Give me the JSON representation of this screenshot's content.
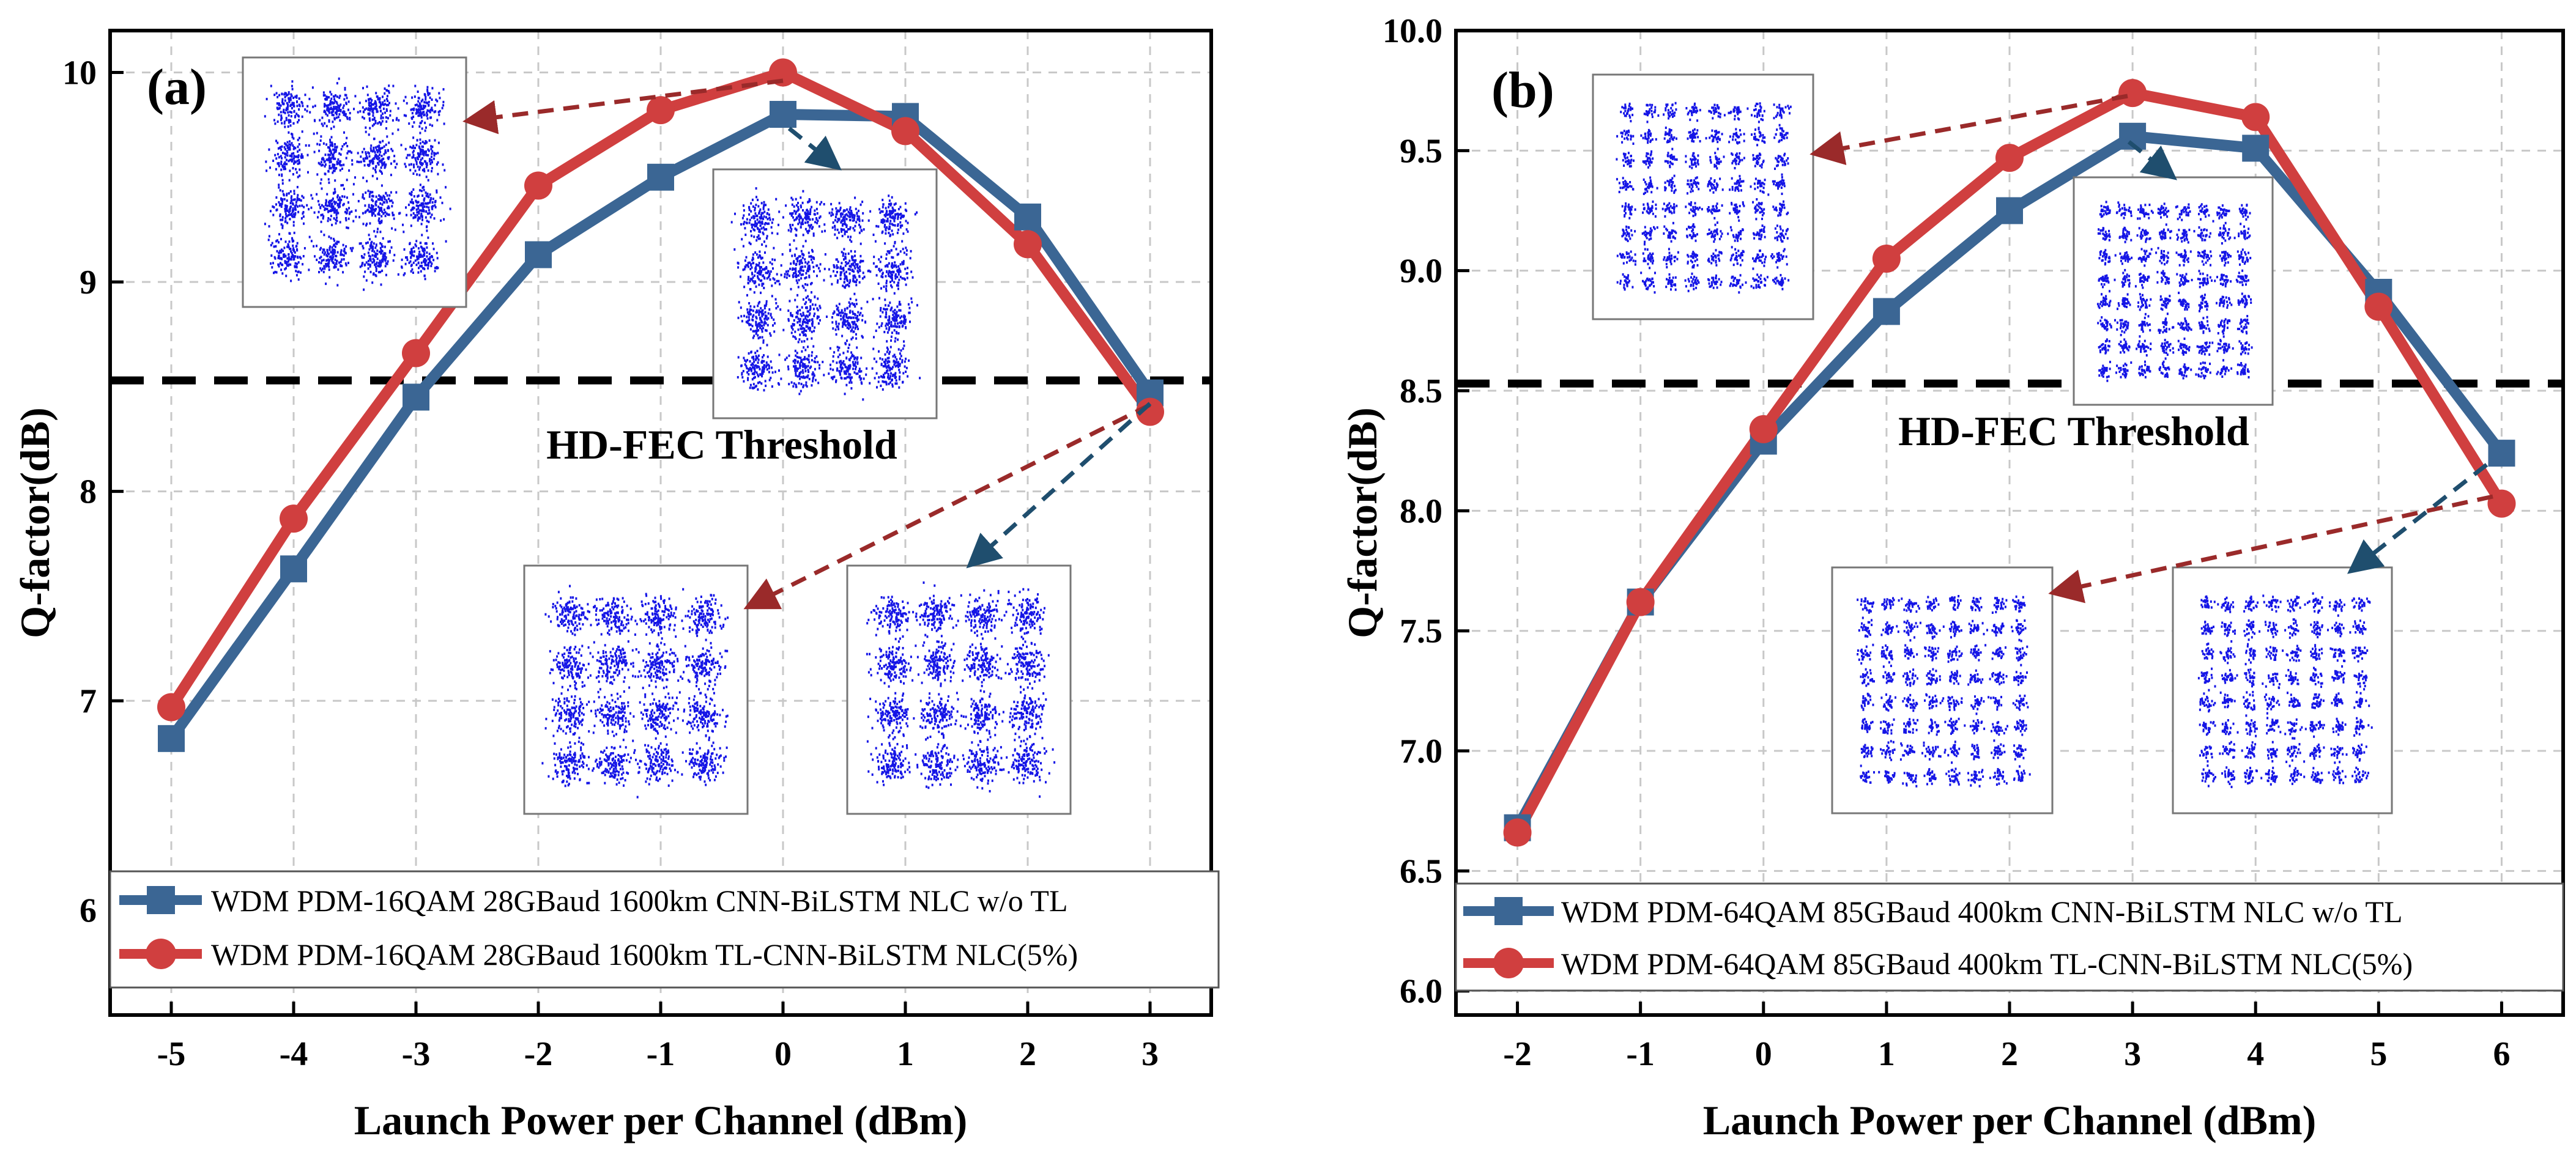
{
  "chart_data": [
    {
      "type": "line",
      "panel_label": "(a)",
      "xlabel": "Launch Power per Channel (dBm)",
      "ylabel": "Q-factor(dB)",
      "x": [
        -5,
        -4,
        -3,
        -2,
        -1,
        0,
        1,
        2,
        3
      ],
      "x_tick_labels": [
        "-5",
        "-4",
        "-3",
        "-2",
        "-1",
        "0",
        "1",
        "2",
        "3"
      ],
      "xlim": [
        -5.5,
        3.5
      ],
      "ylim": [
        5.5,
        10.2
      ],
      "y_ticks": [
        6,
        7,
        8,
        9,
        10
      ],
      "y_tick_labels": [
        "6",
        "7",
        "8",
        "9",
        "10"
      ],
      "grid": true,
      "legend_position": "bottom-left",
      "threshold": {
        "value": 8.53,
        "label": "HD-FEC Threshold"
      },
      "series": [
        {
          "name": "WDM PDM-16QAM 28GBaud 1600km CNN-BiLSTM NLC w/o TL",
          "marker": "square",
          "color": "#3b6694",
          "values": [
            6.82,
            7.63,
            8.45,
            9.13,
            9.5,
            9.8,
            9.79,
            9.31,
            8.47
          ]
        },
        {
          "name": "WDM PDM-16QAM 28GBaud 1600km TL-CNN-BiLSTM NLC(5%)",
          "marker": "circle",
          "color": "#d03f3f",
          "values": [
            6.97,
            7.87,
            8.66,
            9.46,
            9.82,
            10.0,
            9.72,
            9.18,
            8.38
          ]
        }
      ]
    },
    {
      "type": "line",
      "panel_label": "(b)",
      "xlabel": "Launch Power per Channel (dBm)",
      "ylabel": "Q-factor(dB)",
      "x": [
        -2,
        -1,
        0,
        1,
        2,
        3,
        4,
        5,
        6
      ],
      "x_tick_labels": [
        "-2",
        "-1",
        "0",
        "1",
        "2",
        "3",
        "4",
        "5",
        "6"
      ],
      "xlim": [
        -2.5,
        6.5
      ],
      "ylim": [
        5.9,
        10.0
      ],
      "y_ticks": [
        6.0,
        6.5,
        7.0,
        7.5,
        8.0,
        8.5,
        9.0,
        9.5,
        10.0
      ],
      "y_tick_labels": [
        "6.0",
        "6.5",
        "7.0",
        "7.5",
        "8.0",
        "8.5",
        "9.0",
        "9.5",
        "10.0"
      ],
      "grid": true,
      "legend_position": "bottom-left",
      "threshold": {
        "value": 8.53,
        "label": "HD-FEC Threshold"
      },
      "series": [
        {
          "name": "WDM PDM-64QAM 85GBaud 400km CNN-BiLSTM NLC w/o TL",
          "marker": "square",
          "color": "#3b6694",
          "values": [
            6.68,
            7.62,
            8.29,
            8.83,
            9.25,
            9.56,
            9.51,
            8.91,
            8.24
          ]
        },
        {
          "name": "WDM PDM-64QAM 85GBaud 400km TL-CNN-BiLSTM NLC(5%)",
          "marker": "circle",
          "color": "#d03f3f",
          "values": [
            6.66,
            7.62,
            8.34,
            9.05,
            9.47,
            9.74,
            9.64,
            8.85,
            8.03
          ]
        }
      ]
    }
  ]
}
